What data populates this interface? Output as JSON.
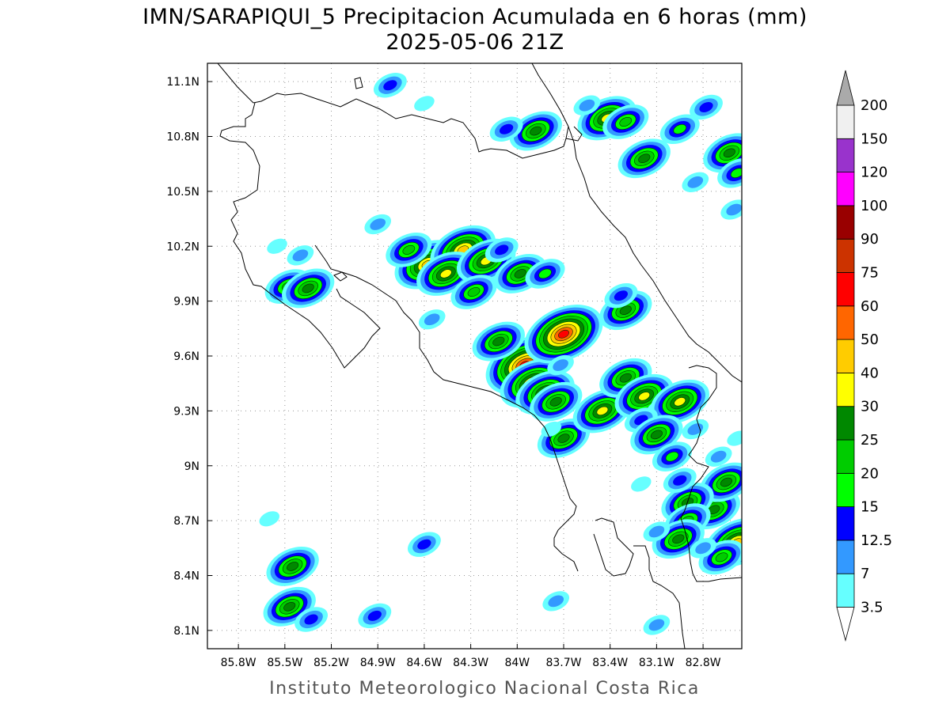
{
  "title": "IMN/SARAPIQUI_5 Precipitacion Acumulada en 6 horas (mm)",
  "subtitle": "2025-05-06 21Z",
  "footer": "Instituto Meteorologico Nacional Costa Rica",
  "map": {
    "lon_range": [
      -86.0,
      -82.55
    ],
    "lat_range": [
      8.0,
      11.2
    ],
    "lon_ticks": [
      {
        "value": -85.8,
        "label": "85.8W"
      },
      {
        "value": -85.5,
        "label": "85.5W"
      },
      {
        "value": -85.2,
        "label": "85.2W"
      },
      {
        "value": -84.9,
        "label": "84.9W"
      },
      {
        "value": -84.6,
        "label": "84.6W"
      },
      {
        "value": -84.3,
        "label": "84.3W"
      },
      {
        "value": -84.0,
        "label": "84W"
      },
      {
        "value": -83.7,
        "label": "83.7W"
      },
      {
        "value": -83.4,
        "label": "83.4W"
      },
      {
        "value": -83.1,
        "label": "83.1W"
      },
      {
        "value": -82.8,
        "label": "82.8W"
      }
    ],
    "lat_ticks": [
      {
        "value": 11.1,
        "label": "11.1N"
      },
      {
        "value": 10.8,
        "label": "10.8N"
      },
      {
        "value": 10.5,
        "label": "10.5N"
      },
      {
        "value": 10.2,
        "label": "10.2N"
      },
      {
        "value": 9.9,
        "label": "9.9N"
      },
      {
        "value": 9.6,
        "label": "9.6N"
      },
      {
        "value": 9.3,
        "label": "9.3N"
      },
      {
        "value": 9.0,
        "label": "9N"
      },
      {
        "value": 8.7,
        "label": "8.7N"
      },
      {
        "value": 8.4,
        "label": "8.4N"
      },
      {
        "value": 8.1,
        "label": "8.1N"
      }
    ],
    "grid": true
  },
  "colorbar": {
    "levels": [
      {
        "label": "3.5",
        "color": "#66ffff"
      },
      {
        "label": "7",
        "color": "#3399ff"
      },
      {
        "label": "12.5",
        "color": "#0000ff"
      },
      {
        "label": "15",
        "color": "#00ff00"
      },
      {
        "label": "20",
        "color": "#00cc00"
      },
      {
        "label": "25",
        "color": "#008800"
      },
      {
        "label": "30",
        "color": "#ffff00"
      },
      {
        "label": "40",
        "color": "#ffcc00"
      },
      {
        "label": "50",
        "color": "#ff6600"
      },
      {
        "label": "60",
        "color": "#ff0000"
      },
      {
        "label": "75",
        "color": "#cc3300"
      },
      {
        "label": "90",
        "color": "#990000"
      },
      {
        "label": "100",
        "color": "#ff00ff"
      },
      {
        "label": "120",
        "color": "#9933cc"
      },
      {
        "label": "150",
        "color": "#f0f0f0"
      },
      {
        "label": "200",
        "color": "#aaaaaa"
      }
    ],
    "top_arrow_color": "#aaaaaa",
    "bottom_arrow_color": "#ffffff"
  },
  "precip_cells": [
    {
      "lon": -84.58,
      "lat": 10.1,
      "max": 40
    },
    {
      "lon": -84.35,
      "lat": 10.18,
      "max": 40
    },
    {
      "lon": -84.46,
      "lat": 10.05,
      "max": 30
    },
    {
      "lon": -84.7,
      "lat": 10.18,
      "max": 20
    },
    {
      "lon": -84.2,
      "lat": 10.12,
      "max": 30
    },
    {
      "lon": -84.1,
      "lat": 10.18,
      "max": 12.5
    },
    {
      "lon": -83.98,
      "lat": 10.05,
      "max": 25
    },
    {
      "lon": -83.82,
      "lat": 10.05,
      "max": 15
    },
    {
      "lon": -84.28,
      "lat": 9.95,
      "max": 20
    },
    {
      "lon": -85.4,
      "lat": 10.15,
      "max": 7
    },
    {
      "lon": -85.48,
      "lat": 9.98,
      "max": 20
    },
    {
      "lon": -85.35,
      "lat": 9.97,
      "max": 25
    },
    {
      "lon": -84.9,
      "lat": 10.32,
      "max": 7
    },
    {
      "lon": -85.55,
      "lat": 10.2,
      "max": 3.5
    },
    {
      "lon": -83.95,
      "lat": 9.55,
      "max": 60
    },
    {
      "lon": -84.12,
      "lat": 9.68,
      "max": 25
    },
    {
      "lon": -83.9,
      "lat": 9.45,
      "max": 40
    },
    {
      "lon": -83.82,
      "lat": 9.4,
      "max": 30
    },
    {
      "lon": -83.75,
      "lat": 9.35,
      "max": 25
    },
    {
      "lon": -83.7,
      "lat": 9.72,
      "max": 60
    },
    {
      "lon": -83.72,
      "lat": 9.55,
      "max": 7
    },
    {
      "lon": -83.7,
      "lat": 9.15,
      "max": 25
    },
    {
      "lon": -83.45,
      "lat": 9.3,
      "max": 30
    },
    {
      "lon": -83.3,
      "lat": 9.48,
      "max": 25
    },
    {
      "lon": -83.18,
      "lat": 9.38,
      "max": 30
    },
    {
      "lon": -83.05,
      "lat": 9.3,
      "max": 15
    },
    {
      "lon": -82.95,
      "lat": 9.35,
      "max": 30
    },
    {
      "lon": -83.2,
      "lat": 9.25,
      "max": 12.5
    },
    {
      "lon": -83.1,
      "lat": 9.17,
      "max": 25
    },
    {
      "lon": -83.0,
      "lat": 9.05,
      "max": 15
    },
    {
      "lon": -82.85,
      "lat": 9.2,
      "max": 7
    },
    {
      "lon": -83.3,
      "lat": 9.85,
      "max": 25
    },
    {
      "lon": -83.33,
      "lat": 9.93,
      "max": 12.5
    },
    {
      "lon": -83.42,
      "lat": 10.9,
      "max": 30
    },
    {
      "lon": -83.3,
      "lat": 10.88,
      "max": 20
    },
    {
      "lon": -83.55,
      "lat": 10.97,
      "max": 7
    },
    {
      "lon": -83.88,
      "lat": 10.83,
      "max": 25
    },
    {
      "lon": -84.07,
      "lat": 10.84,
      "max": 12.5
    },
    {
      "lon": -83.18,
      "lat": 10.68,
      "max": 25
    },
    {
      "lon": -82.95,
      "lat": 10.84,
      "max": 15
    },
    {
      "lon": -82.78,
      "lat": 10.96,
      "max": 12.5
    },
    {
      "lon": -82.63,
      "lat": 10.71,
      "max": 25
    },
    {
      "lon": -82.58,
      "lat": 10.6,
      "max": 15
    },
    {
      "lon": -82.85,
      "lat": 10.55,
      "max": 7
    },
    {
      "lon": -82.6,
      "lat": 10.4,
      "max": 7
    },
    {
      "lon": -84.82,
      "lat": 11.08,
      "max": 12.5
    },
    {
      "lon": -84.6,
      "lat": 10.98,
      "max": 3.5
    },
    {
      "lon": -82.58,
      "lat": 8.58,
      "max": 40
    },
    {
      "lon": -82.68,
      "lat": 8.5,
      "max": 20
    },
    {
      "lon": -82.73,
      "lat": 8.76,
      "max": 25
    },
    {
      "lon": -82.65,
      "lat": 8.91,
      "max": 25
    },
    {
      "lon": -82.9,
      "lat": 8.8,
      "max": 25
    },
    {
      "lon": -82.9,
      "lat": 8.7,
      "max": 20
    },
    {
      "lon": -82.96,
      "lat": 8.6,
      "max": 25
    },
    {
      "lon": -83.1,
      "lat": 8.64,
      "max": 7
    },
    {
      "lon": -82.95,
      "lat": 8.92,
      "max": 12.5
    },
    {
      "lon": -82.8,
      "lat": 8.55,
      "max": 7
    },
    {
      "lon": -82.7,
      "lat": 9.05,
      "max": 7
    },
    {
      "lon": -82.58,
      "lat": 9.15,
      "max": 3.5
    },
    {
      "lon": -83.2,
      "lat": 8.9,
      "max": 3.5
    },
    {
      "lon": -84.6,
      "lat": 8.57,
      "max": 12.5
    },
    {
      "lon": -85.47,
      "lat": 8.23,
      "max": 25
    },
    {
      "lon": -85.33,
      "lat": 8.16,
      "max": 12.5
    },
    {
      "lon": -85.45,
      "lat": 8.45,
      "max": 25
    },
    {
      "lon": -84.92,
      "lat": 8.18,
      "max": 12.5
    },
    {
      "lon": -83.75,
      "lat": 8.26,
      "max": 7
    },
    {
      "lon": -83.1,
      "lat": 8.13,
      "max": 7
    },
    {
      "lon": -85.6,
      "lat": 8.71,
      "max": 3.5
    },
    {
      "lon": -84.55,
      "lat": 9.8,
      "max": 7
    },
    {
      "lon": -83.78,
      "lat": 9.2,
      "max": 3.5
    }
  ]
}
